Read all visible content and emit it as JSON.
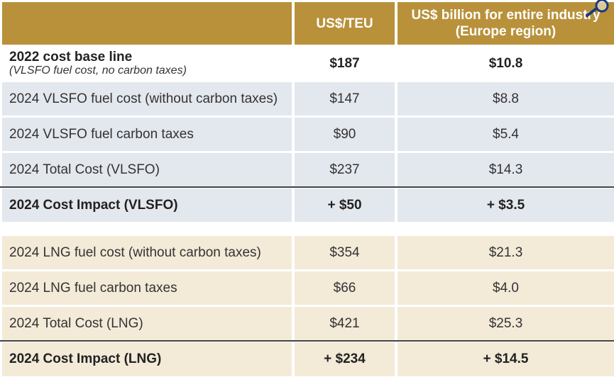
{
  "header": {
    "col2": "US$/TEU",
    "col3_line1": "US$ billion for entire industry",
    "col3_line2": "(Europe region)"
  },
  "rows": [
    {
      "label": "2022 cost base line",
      "sublabel": "(VLSFO fuel cost, no carbon taxes)",
      "teu": "$187",
      "industry": "$10.8"
    },
    {
      "label": "2024 VLSFO fuel cost (without carbon taxes)",
      "teu": "$147",
      "industry": "$8.8"
    },
    {
      "label": "2024 VLSFO fuel carbon taxes",
      "teu": "$90",
      "industry": "$5.4"
    },
    {
      "label": "2024 Total Cost (VLSFO)",
      "teu": "$237",
      "industry": "$14.3"
    },
    {
      "label": "2024 Cost Impact (VLSFO)",
      "teu": "+ $50",
      "industry": "+ $3.5"
    },
    {
      "label": "2024 LNG fuel cost (without carbon taxes)",
      "teu": "$354",
      "industry": "$21.3"
    },
    {
      "label": "2024 LNG fuel carbon taxes",
      "teu": "$66",
      "industry": "$4.0"
    },
    {
      "label": "2024 Total Cost (LNG)",
      "teu": "$421",
      "industry": "$25.3"
    },
    {
      "label": "2024 Cost Impact (LNG)",
      "teu": "+ $234",
      "industry": "+ $14.5"
    }
  ],
  "icons": {
    "zoom": "magnifier-icon"
  },
  "colors": {
    "header": "#b8913a",
    "vlsfo_rows": "#e3e7ee",
    "lng_rows": "#f3ead8"
  }
}
